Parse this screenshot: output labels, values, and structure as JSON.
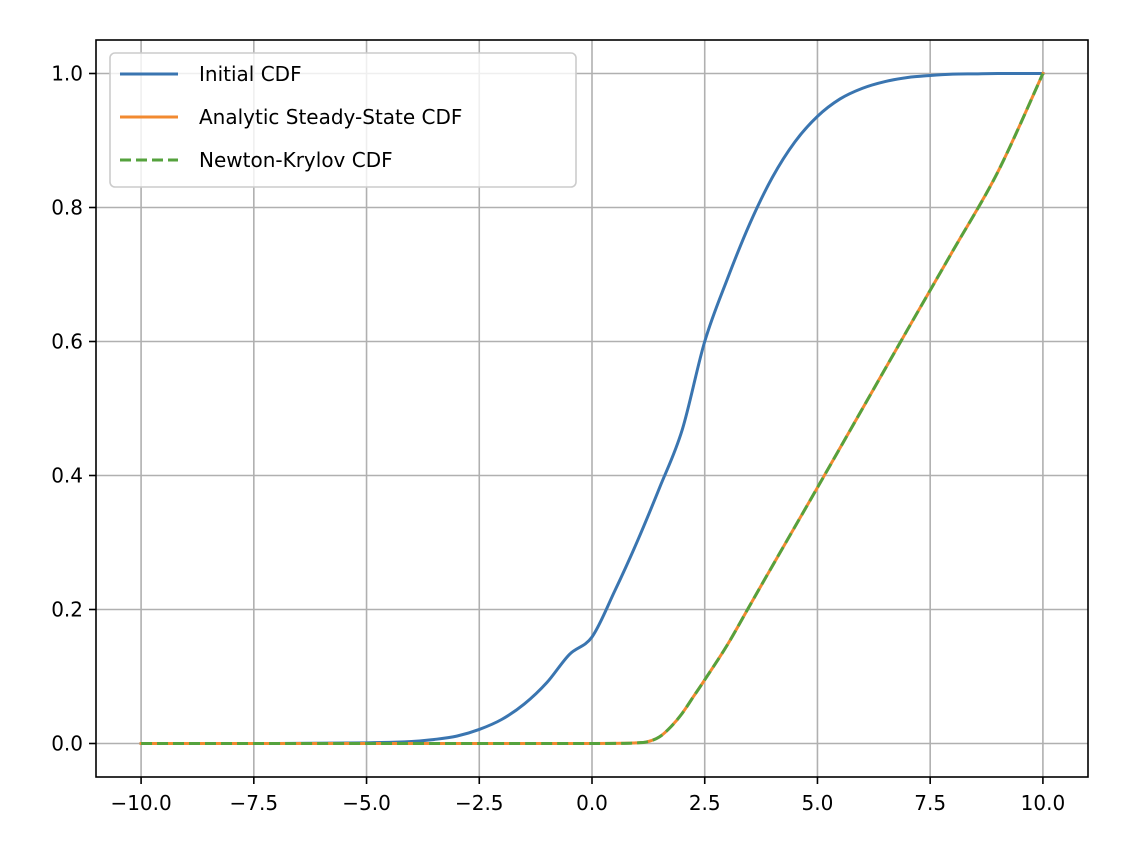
{
  "chart_data": {
    "type": "line",
    "title": "",
    "xlabel": "",
    "ylabel": "",
    "xlim": [
      -11.0,
      11.0
    ],
    "ylim": [
      -0.05,
      1.05
    ],
    "grid": true,
    "legend_position": "top-left",
    "x_ticks": [
      -10.0,
      -7.5,
      -5.0,
      -2.5,
      0.0,
      2.5,
      5.0,
      7.5,
      10.0
    ],
    "x_tick_labels": [
      "−10.0",
      "−7.5",
      "−5.0",
      "−2.5",
      "0.0",
      "2.5",
      "5.0",
      "7.5",
      "10.0"
    ],
    "y_ticks": [
      0.0,
      0.2,
      0.4,
      0.6,
      0.8,
      1.0
    ],
    "y_tick_labels": [
      "0.0",
      "0.2",
      "0.4",
      "0.6",
      "0.8",
      "1.0"
    ],
    "series": [
      {
        "name": "Initial CDF",
        "color": "#3a75b0",
        "style": "solid",
        "x": [
          -10,
          -7,
          -5,
          -4,
          -3.5,
          -3,
          -2.5,
          -2,
          -1.5,
          -1,
          -0.5,
          0,
          0.5,
          1,
          1.5,
          2,
          2.5,
          3,
          3.5,
          4,
          4.5,
          5,
          5.5,
          6,
          6.5,
          7,
          7.5,
          8,
          8.5,
          9,
          10
        ],
        "y": [
          0.0,
          0.0,
          0.001,
          0.003,
          0.006,
          0.011,
          0.021,
          0.036,
          0.059,
          0.091,
          0.133,
          0.159,
          0.227,
          0.301,
          0.382,
          0.468,
          0.6,
          0.693,
          0.776,
          0.845,
          0.898,
          0.936,
          0.962,
          0.978,
          0.988,
          0.994,
          0.997,
          0.999,
          0.9995,
          1.0,
          1.0
        ]
      },
      {
        "name": "Analytic Steady-State CDF",
        "color": "#f28a30",
        "style": "solid",
        "x": [
          -10,
          -5,
          0,
          1,
          1.25,
          1.5,
          1.75,
          2,
          2.25,
          2.5,
          3,
          3.5,
          4,
          5,
          6,
          7,
          8,
          9,
          10
        ],
        "y": [
          0.0,
          0.0,
          0.0,
          0.001,
          0.003,
          0.01,
          0.025,
          0.045,
          0.07,
          0.095,
          0.147,
          0.206,
          0.265,
          0.382,
          0.5,
          0.618,
          0.735,
          0.853,
          1.0
        ]
      },
      {
        "name": "Newton-Krylov CDF",
        "color": "#55a23d",
        "style": "dashed",
        "x": [
          -10,
          -5,
          0,
          1,
          1.25,
          1.5,
          1.75,
          2,
          2.25,
          2.5,
          3,
          3.5,
          4,
          5,
          6,
          7,
          8,
          9,
          10
        ],
        "y": [
          0.0,
          0.0,
          0.0,
          0.001,
          0.003,
          0.01,
          0.025,
          0.045,
          0.07,
          0.095,
          0.147,
          0.206,
          0.265,
          0.382,
          0.5,
          0.618,
          0.735,
          0.853,
          1.0
        ]
      }
    ]
  }
}
